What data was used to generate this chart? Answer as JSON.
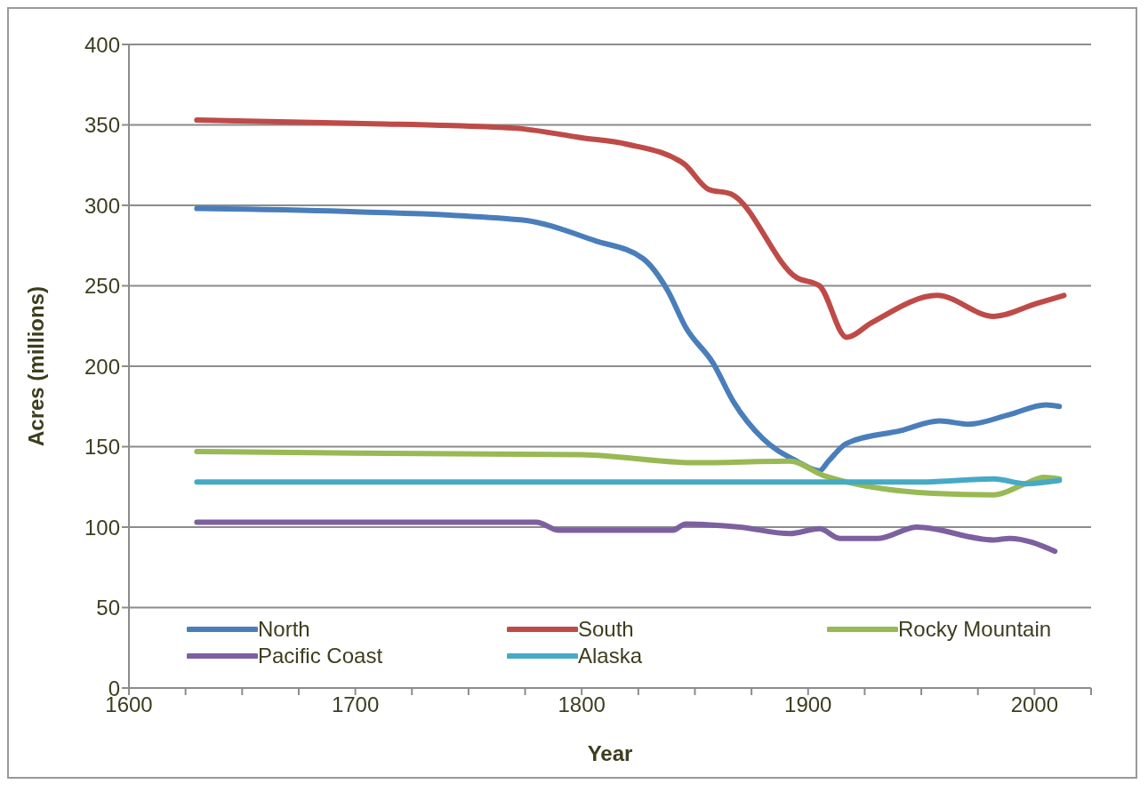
{
  "chart_data": {
    "type": "line",
    "xlabel": "Year",
    "ylabel": "Acres (millions)",
    "xlim": [
      1600,
      2025
    ],
    "xticks": [
      1600,
      {
        "value": 1625,
        "label": null
      },
      {
        "value": 1650,
        "label": null
      },
      {
        "value": 1675,
        "label": null
      },
      1700,
      {
        "value": 1725,
        "label": null
      },
      {
        "value": 1750,
        "label": null
      },
      {
        "value": 1775,
        "label": null
      },
      1800,
      {
        "value": 1825,
        "label": null
      },
      {
        "value": 1850,
        "label": null
      },
      {
        "value": 1875,
        "label": null
      },
      1900,
      {
        "value": 1925,
        "label": null
      },
      {
        "value": 1950,
        "label": null
      },
      {
        "value": 1975,
        "label": null
      },
      2000,
      {
        "value": 2025,
        "label": null
      }
    ],
    "ylim": [
      0,
      400
    ],
    "yticks": [
      0,
      50,
      100,
      150,
      200,
      250,
      300,
      350,
      400
    ],
    "grid": "y",
    "legend": "bottom",
    "marker": "none",
    "line_style": "solid",
    "series": [
      {
        "name": "North",
        "color": "#4a7ebb",
        "x": [
          1630,
          1700,
          1773,
          1806,
          1827,
          1838,
          1846,
          1858,
          1867,
          1880,
          1895,
          1905,
          1909,
          1917,
          1941,
          1958,
          1971,
          1989,
          2005,
          2011
        ],
        "values": [
          298,
          296,
          291,
          278,
          267,
          247,
          224,
          202,
          178,
          155,
          141,
          135,
          141,
          152,
          160,
          166,
          164,
          170,
          176,
          175
        ]
      },
      {
        "name": "South",
        "color": "#be4b48",
        "x": [
          1630,
          1700,
          1770,
          1800,
          1820,
          1845,
          1856,
          1866,
          1895,
          1905,
          1917,
          1928,
          1957,
          1982,
          2001,
          2013
        ],
        "values": [
          353,
          351,
          348,
          342,
          338,
          326,
          310,
          307,
          255,
          250,
          218,
          227,
          244,
          231,
          239,
          244
        ]
      },
      {
        "name": "Rocky Mountain",
        "color": "#98b954",
        "x": [
          1630,
          1700,
          1800,
          1850,
          1892,
          1907,
          1955,
          1982,
          1996,
          2004,
          2011
        ],
        "values": [
          147,
          146,
          145,
          140,
          141,
          132,
          121,
          120,
          127,
          131,
          130
        ]
      },
      {
        "name": "Pacific Coast",
        "color": "#7d60a0",
        "x": [
          1630,
          1700,
          1780,
          1790,
          1840,
          1846,
          1870,
          1892,
          1905,
          1914,
          1931,
          1948,
          1982,
          1989,
          2009
        ],
        "values": [
          103,
          103,
          103,
          98,
          98,
          102,
          100,
          96,
          99,
          93,
          93,
          100,
          92,
          93,
          85
        ]
      },
      {
        "name": "Alaska",
        "color": "#46aac5",
        "x": [
          1630,
          1700,
          1800,
          1900,
          1950,
          1982,
          1996,
          2011
        ],
        "values": [
          128,
          128,
          128,
          128,
          128,
          130,
          127,
          129
        ]
      }
    ]
  }
}
